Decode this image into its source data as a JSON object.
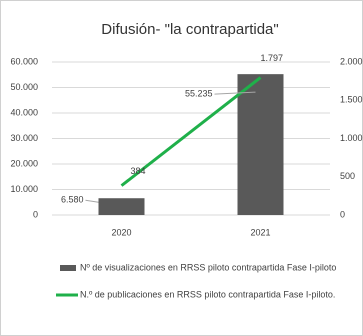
{
  "chart_data": {
    "type": "bar-line",
    "title": "Difusión- \"la contrapartida\"",
    "categories": [
      "2020",
      "2021"
    ],
    "series": [
      {
        "name": "Nº de visualizaciones en RRSS piloto contrapartida Fase I-piloto",
        "type": "bar",
        "color": "#595959",
        "values": [
          6580,
          55235
        ],
        "value_labels": [
          "6.580",
          "55.235"
        ]
      },
      {
        "name": "N.º de publicaciones en RRSS piloto contrapartida Fase I-piloto.",
        "type": "line",
        "axis": "y2",
        "color": "#1fb04a",
        "values": [
          384,
          1797
        ],
        "value_labels": [
          "384",
          "1.797"
        ]
      }
    ],
    "ylim": [
      0,
      60000
    ],
    "yticks": [
      0,
      {
        "value": 10000,
        "label": "10.000"
      },
      {
        "value": 20000,
        "label": "20.000"
      },
      {
        "value": 30000,
        "label": "30.000"
      },
      {
        "value": 40000,
        "label": "40.000"
      },
      {
        "value": 50000,
        "label": "50.000"
      },
      {
        "value": 60000,
        "label": "60.000"
      }
    ],
    "y2lim": [
      0,
      2000
    ],
    "y2ticks": [
      0,
      500,
      {
        "value": 1000,
        "label": "1.000"
      },
      {
        "value": 1500,
        "label": "1.500"
      },
      {
        "value": 2000,
        "label": "2.000"
      }
    ],
    "grid": true,
    "legend": "bottom"
  }
}
